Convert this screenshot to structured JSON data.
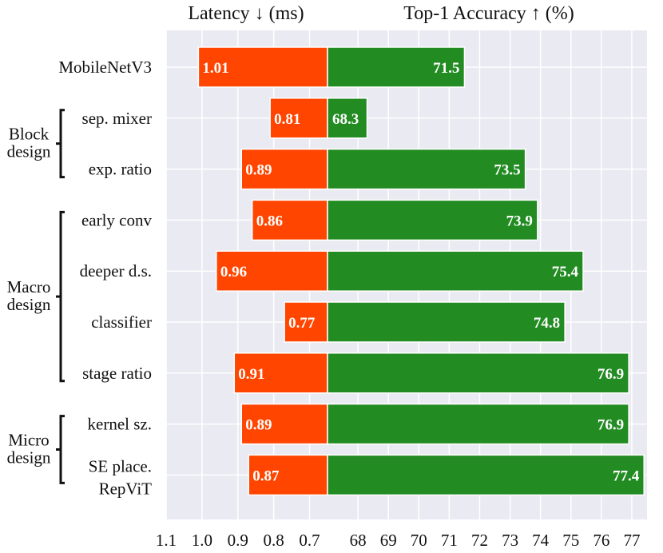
{
  "chart_data": {
    "type": "bar",
    "layout": "diverging-horizontal",
    "left_panel": {
      "title": "Latency ↓ (ms)",
      "xlim": [
        1.1,
        0.65
      ],
      "ticks": [
        1.1,
        1.0,
        0.9,
        0.8,
        0.7
      ],
      "tick_labels": [
        "1.1",
        "1.0",
        "0.9",
        "0.8",
        "0.7"
      ],
      "color": "#ff4500"
    },
    "right_panel": {
      "title": "Top-1 Accuracy ↑ (%)",
      "xlim": [
        67.0,
        77.5
      ],
      "ticks": [
        68,
        69,
        70,
        71,
        72,
        73,
        74,
        75,
        76,
        77
      ],
      "tick_labels": [
        "68",
        "69",
        "70",
        "71",
        "72",
        "73",
        "74",
        "75",
        "76",
        "77"
      ],
      "color": "#228b22"
    },
    "categories": [
      "MobileNetV3",
      "sep. mixer",
      "exp. ratio",
      "early conv",
      "deeper d.s.",
      "classifier",
      "stage ratio",
      "kernel sz.",
      "SE place.\nRepViT"
    ],
    "category_lines": [
      [
        "MobileNetV3"
      ],
      [
        "sep. mixer"
      ],
      [
        "exp. ratio"
      ],
      [
        "early conv"
      ],
      [
        "deeper d.s."
      ],
      [
        "classifier"
      ],
      [
        "stage ratio"
      ],
      [
        "kernel sz."
      ],
      [
        "SE place.",
        "RepViT"
      ]
    ],
    "latency": [
      1.01,
      0.81,
      0.89,
      0.86,
      0.96,
      0.77,
      0.91,
      0.89,
      0.87
    ],
    "latency_labels": [
      "1.01",
      "0.81",
      "0.89",
      "0.86",
      "0.96",
      "0.77",
      "0.91",
      "0.89",
      "0.87"
    ],
    "accuracy": [
      71.5,
      68.3,
      73.5,
      73.9,
      75.4,
      74.8,
      76.9,
      76.9,
      77.4
    ],
    "accuracy_labels": [
      "71.5",
      "68.3",
      "73.5",
      "73.9",
      "75.4",
      "74.8",
      "76.9",
      "76.9",
      "77.4"
    ],
    "groups": [
      {
        "lines": [
          "Block",
          "design"
        ],
        "from": 1,
        "to": 2
      },
      {
        "lines": [
          "Macro",
          "design"
        ],
        "from": 3,
        "to": 6
      },
      {
        "lines": [
          "Micro",
          "design"
        ],
        "from": 7,
        "to": 8
      }
    ],
    "background": "#eaeaf2",
    "grid": true
  }
}
